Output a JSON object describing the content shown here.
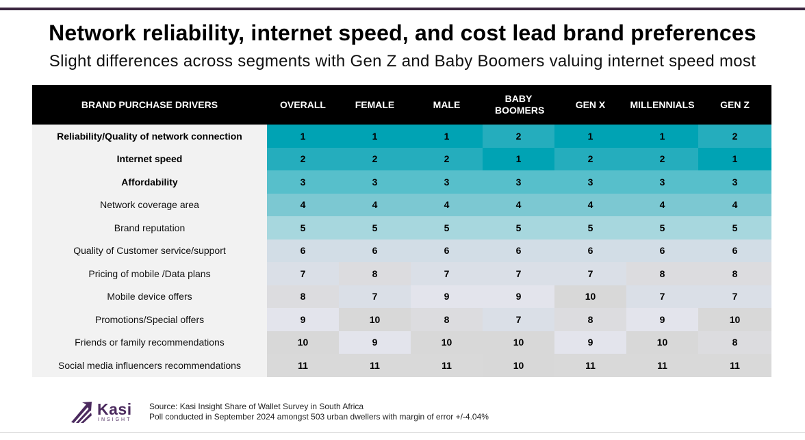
{
  "chart_data": {
    "type": "table",
    "title": "Network reliability, internet speed, and cost lead brand preferences",
    "subtitle": "Slight differences across segments with Gen Z and Baby Boomers valuing internet speed most",
    "row_header": "BRAND PURCHASE DRIVERS",
    "columns": [
      "OVERALL",
      "FEMALE",
      "MALE",
      "BABY BOOMERS",
      "GEN X",
      "MILLENNIALS",
      "GEN Z"
    ],
    "rows": [
      {
        "label": "Reliability/Quality of network connection",
        "bold": true,
        "values": [
          1,
          1,
          1,
          2,
          1,
          1,
          2
        ]
      },
      {
        "label": "Internet speed",
        "bold": true,
        "values": [
          2,
          2,
          2,
          1,
          2,
          2,
          1
        ]
      },
      {
        "label": "Affordability",
        "bold": true,
        "values": [
          3,
          3,
          3,
          3,
          3,
          3,
          3
        ]
      },
      {
        "label": "Network coverage area",
        "bold": false,
        "values": [
          4,
          4,
          4,
          4,
          4,
          4,
          4
        ]
      },
      {
        "label": "Brand reputation",
        "bold": false,
        "values": [
          5,
          5,
          5,
          5,
          5,
          5,
          5
        ]
      },
      {
        "label": "Quality of Customer service/support",
        "bold": false,
        "values": [
          6,
          6,
          6,
          6,
          6,
          6,
          6
        ]
      },
      {
        "label": "Pricing of mobile /Data plans",
        "bold": false,
        "values": [
          7,
          8,
          7,
          7,
          7,
          8,
          8
        ]
      },
      {
        "label": "Mobile device offers",
        "bold": false,
        "values": [
          8,
          7,
          9,
          9,
          10,
          7,
          7
        ]
      },
      {
        "label": "Promotions/Special offers",
        "bold": false,
        "values": [
          9,
          10,
          8,
          7,
          8,
          9,
          10
        ]
      },
      {
        "label": "Friends or family recommendations",
        "bold": false,
        "values": [
          10,
          9,
          10,
          10,
          9,
          10,
          8
        ]
      },
      {
        "label": "Social media influencers recommendations",
        "bold": false,
        "values": [
          11,
          11,
          11,
          10,
          11,
          11,
          11
        ]
      }
    ],
    "rank_colors": {
      "1": "#00a3b4",
      "2": "#25adbd",
      "3": "#57bfcb",
      "4": "#7cc8d2",
      "5": "#a7d7de",
      "6": "#d2dde6",
      "7": "#dadfe7",
      "8": "#dcdcdf",
      "9": "#e3e4ec",
      "10": "#d8d8d8",
      "11": "#d9d9d9"
    }
  },
  "logo": {
    "name": "Kasi",
    "sub": "INSIGHT",
    "color": "#4b2a5e"
  },
  "source": {
    "line1": "Source: Kasi Insight Share of Wallet Survey in South Africa",
    "line2": "Poll conducted in September 2024 amongst 503 urban dwellers with margin of error +/-4.04%"
  }
}
